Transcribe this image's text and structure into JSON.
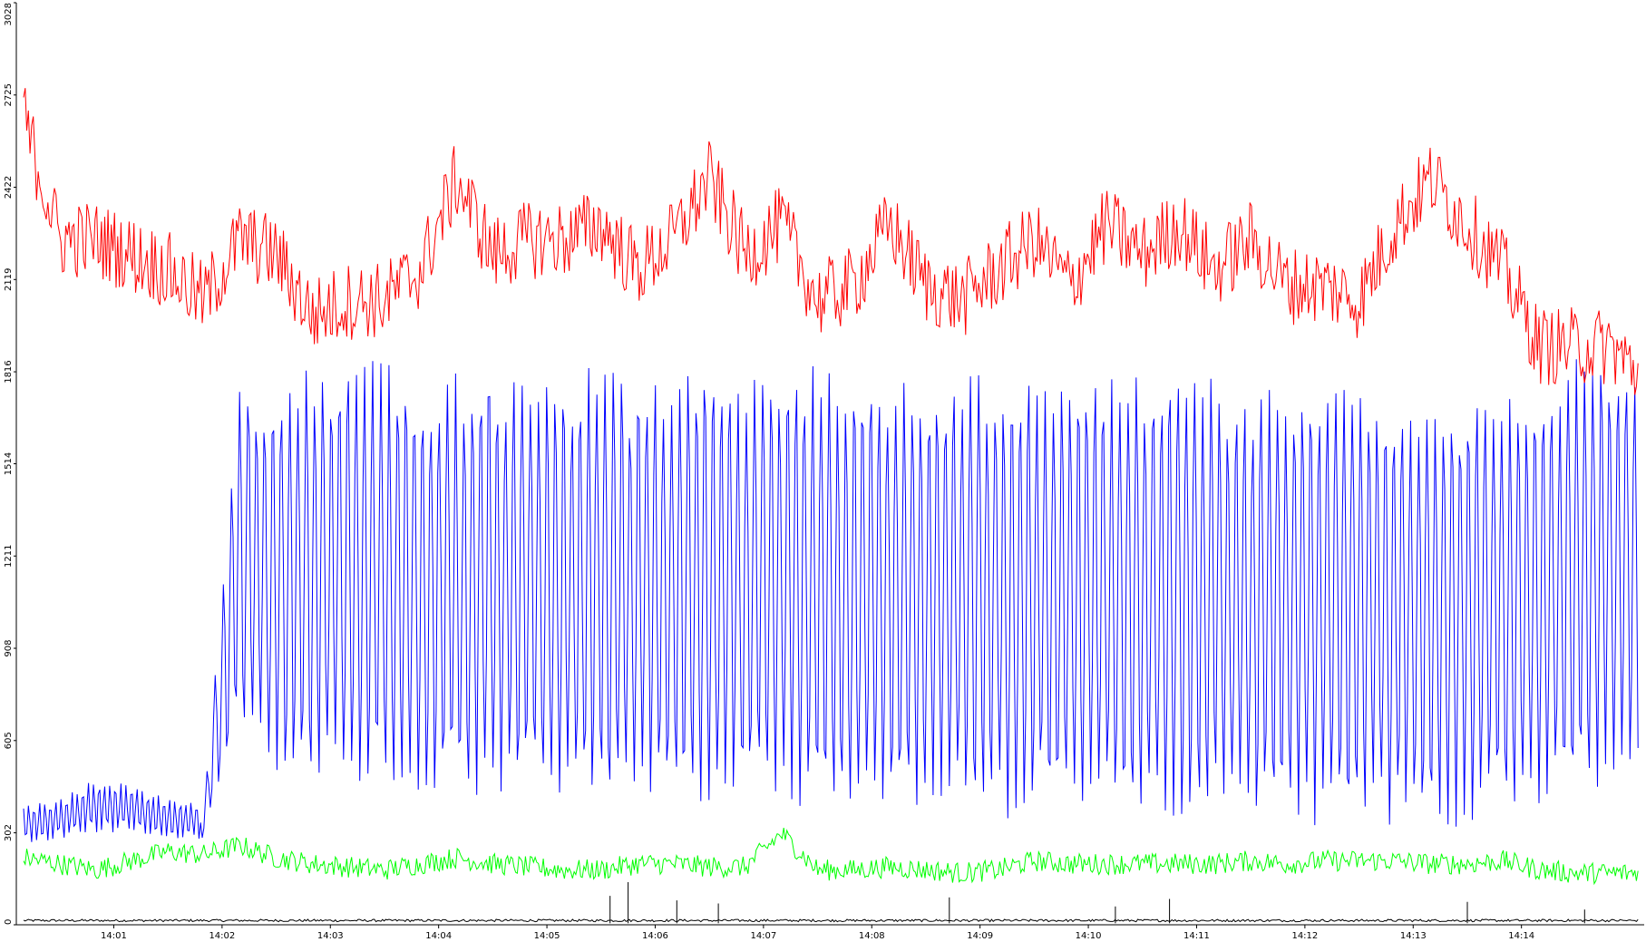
{
  "chart_data": {
    "type": "line",
    "title": "",
    "xlabel": "",
    "ylabel": "",
    "ylim": [
      0,
      3028
    ],
    "y_ticks": [
      "0",
      "302",
      "605",
      "908",
      "1211",
      "1514",
      "1816",
      "2119",
      "2422",
      "2725",
      "3028"
    ],
    "y_tick_values": [
      0,
      302,
      605,
      908,
      1211,
      1514,
      1816,
      2119,
      2422,
      2725,
      3028
    ],
    "x_range": [
      "14:00:06",
      "14:15:08"
    ],
    "x_ticks": [
      "14:01",
      "14:02",
      "14:03",
      "14:04",
      "14:05",
      "14:06",
      "14:07",
      "14:08",
      "14:09",
      "14:10",
      "14:11",
      "14:12",
      "14:13",
      "14:14"
    ],
    "grid": false,
    "legend": "none",
    "series": [
      {
        "color": "#ff0000",
        "x": [
          "14:00:10",
          "14:00:30",
          "14:00:50",
          "14:01:10",
          "14:01:30",
          "14:01:50",
          "14:02:10",
          "14:02:30",
          "14:02:50",
          "14:03:10",
          "14:03:30",
          "14:03:50",
          "14:04:10",
          "14:04:30",
          "14:04:50",
          "14:05:10",
          "14:05:30",
          "14:05:50",
          "14:06:10",
          "14:06:30",
          "14:06:50",
          "14:07:10",
          "14:07:30",
          "14:07:50",
          "14:08:10",
          "14:08:30",
          "14:08:50",
          "14:09:10",
          "14:09:30",
          "14:09:50",
          "14:10:10",
          "14:10:30",
          "14:10:50",
          "14:11:10",
          "14:11:30",
          "14:11:50",
          "14:12:10",
          "14:12:30",
          "14:12:50",
          "14:13:10",
          "14:13:30",
          "14:13:50",
          "14:14:10",
          "14:14:30",
          "14:14:50",
          "14:15:05"
        ],
        "values": [
          2650,
          2250,
          2250,
          2200,
          2150,
          2050,
          2250,
          2200,
          2000,
          2050,
          2050,
          2150,
          2450,
          2200,
          2250,
          2250,
          2300,
          2150,
          2250,
          2450,
          2200,
          2300,
          2050,
          2100,
          2300,
          2100,
          2050,
          2150,
          2250,
          2100,
          2300,
          2200,
          2300,
          2150,
          2250,
          2100,
          2100,
          2050,
          2300,
          2450,
          2300,
          2150,
          1900,
          1900,
          1900,
          1800
        ]
      },
      {
        "color": "#0000ff",
        "x": [
          "14:00:10",
          "14:00:30",
          "14:00:50",
          "14:01:10",
          "14:01:30",
          "14:01:50",
          "14:02:10",
          "14:02:30",
          "14:02:50",
          "14:03:10",
          "14:03:30",
          "14:03:50",
          "14:04:10",
          "14:04:30",
          "14:04:50",
          "14:05:10",
          "14:05:30",
          "14:05:50",
          "14:06:10",
          "14:06:30",
          "14:06:50",
          "14:07:10",
          "14:07:30",
          "14:07:50",
          "14:08:10",
          "14:08:30",
          "14:08:50",
          "14:09:10",
          "14:09:30",
          "14:09:50",
          "14:10:10",
          "14:10:30",
          "14:10:50",
          "14:11:10",
          "14:11:30",
          "14:11:50",
          "14:12:10",
          "14:12:30",
          "14:12:50",
          "14:13:10",
          "14:13:30",
          "14:13:50",
          "14:14:10",
          "14:14:30",
          "14:14:50",
          "14:15:05"
        ],
        "values": [
          330,
          350,
          380,
          370,
          350,
          340,
          1050,
          1150,
          1200,
          1250,
          1200,
          1150,
          1200,
          1150,
          1200,
          1150,
          1200,
          1150,
          1150,
          1150,
          1150,
          1150,
          1150,
          1100,
          1100,
          1100,
          1100,
          1100,
          1050,
          1050,
          1100,
          1100,
          1100,
          1100,
          1050,
          1050,
          1050,
          1050,
          1050,
          1050,
          1050,
          1050,
          1050,
          1100,
          1100,
          1100
        ],
        "band_low": [
          260,
          280,
          300,
          300,
          280,
          280,
          650,
          500,
          460,
          450,
          420,
          400,
          420,
          420,
          410,
          400,
          400,
          400,
          400,
          380,
          380,
          380,
          370,
          370,
          360,
          360,
          360,
          350,
          350,
          340,
          340,
          340,
          340,
          340,
          340,
          340,
          330,
          330,
          330,
          330,
          330,
          330,
          400,
          420,
          450,
          470
        ],
        "band_high": [
          400,
          420,
          480,
          460,
          420,
          400,
          1800,
          1750,
          1850,
          1850,
          1850,
          1800,
          1800,
          1850,
          1800,
          1800,
          1850,
          1800,
          1800,
          1850,
          1800,
          1850,
          1850,
          1800,
          1800,
          1800,
          1800,
          1800,
          1800,
          1800,
          1850,
          1850,
          1800,
          1800,
          1750,
          1750,
          1800,
          1800,
          1750,
          1750,
          1750,
          1750,
          1750,
          1900,
          1900,
          1850
        ]
      },
      {
        "color": "#00ff00",
        "x": [
          "14:00:10",
          "14:00:30",
          "14:00:50",
          "14:01:10",
          "14:01:30",
          "14:01:50",
          "14:02:10",
          "14:02:30",
          "14:02:50",
          "14:03:10",
          "14:03:30",
          "14:03:50",
          "14:04:10",
          "14:04:30",
          "14:04:50",
          "14:05:10",
          "14:05:30",
          "14:05:50",
          "14:06:10",
          "14:06:30",
          "14:06:50",
          "14:07:10",
          "14:07:30",
          "14:07:50",
          "14:08:10",
          "14:08:30",
          "14:08:50",
          "14:09:10",
          "14:09:30",
          "14:09:50",
          "14:10:10",
          "14:10:30",
          "14:10:50",
          "14:11:10",
          "14:11:30",
          "14:11:50",
          "14:12:10",
          "14:12:30",
          "14:12:50",
          "14:13:10",
          "14:13:30",
          "14:13:50",
          "14:14:10",
          "14:14:30",
          "14:14:50",
          "14:15:05"
        ],
        "values": [
          220,
          200,
          180,
          210,
          240,
          230,
          260,
          220,
          200,
          190,
          180,
          200,
          220,
          200,
          190,
          180,
          180,
          200,
          200,
          190,
          190,
          300,
          180,
          180,
          190,
          180,
          170,
          180,
          210,
          200,
          200,
          200,
          200,
          200,
          210,
          200,
          210,
          210,
          210,
          200,
          200,
          210,
          180,
          170,
          170,
          170
        ]
      },
      {
        "color": "#000000",
        "x": [
          "14:00:10",
          "14:00:30",
          "14:00:50",
          "14:01:10",
          "14:01:30",
          "14:01:50",
          "14:02:10",
          "14:02:30",
          "14:02:50",
          "14:03:10",
          "14:03:30",
          "14:03:50",
          "14:04:10",
          "14:04:30",
          "14:04:50",
          "14:05:10",
          "14:05:30",
          "14:05:50",
          "14:06:10",
          "14:06:30",
          "14:06:50",
          "14:07:10",
          "14:07:30",
          "14:07:50",
          "14:08:10",
          "14:08:30",
          "14:08:50",
          "14:09:10",
          "14:09:30",
          "14:09:50",
          "14:10:10",
          "14:10:30",
          "14:10:50",
          "14:11:10",
          "14:11:30",
          "14:11:50",
          "14:12:10",
          "14:12:30",
          "14:12:50",
          "14:13:10",
          "14:13:30",
          "14:13:50",
          "14:14:10",
          "14:14:30",
          "14:14:50",
          "14:15:05"
        ],
        "values": [
          10,
          10,
          10,
          10,
          10,
          10,
          10,
          10,
          10,
          10,
          10,
          10,
          10,
          10,
          10,
          10,
          10,
          10,
          10,
          10,
          10,
          10,
          10,
          10,
          10,
          10,
          10,
          10,
          10,
          10,
          10,
          10,
          10,
          10,
          10,
          10,
          10,
          10,
          10,
          10,
          10,
          10,
          10,
          10,
          10,
          10
        ],
        "spikes": [
          {
            "x": "14:05:35",
            "value": 95
          },
          {
            "x": "14:05:45",
            "value": 140
          },
          {
            "x": "14:06:12",
            "value": 80
          },
          {
            "x": "14:06:35",
            "value": 70
          },
          {
            "x": "14:08:43",
            "value": 90
          },
          {
            "x": "14:10:15",
            "value": 60
          },
          {
            "x": "14:10:45",
            "value": 85
          },
          {
            "x": "14:13:30",
            "value": 75
          },
          {
            "x": "14:14:35",
            "value": 50
          }
        ]
      }
    ]
  }
}
